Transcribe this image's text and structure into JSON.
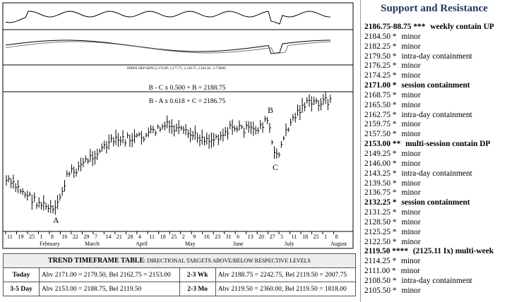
{
  "chart": {
    "indicator_label": "EMINI S&P SEP6 (2,174.00, 2,177.75, 2,158.75, 2,164.50, -3.75000)",
    "annotations": [
      "B - C  x  0.500 + B = 2188.75",
      "B - A  x  0.618 + C = 2186.75"
    ],
    "points": [
      "A",
      "B",
      "C"
    ],
    "days": [
      "11",
      "19",
      "25",
      "1",
      "8",
      "16",
      "22",
      "29",
      "7",
      "14",
      "21",
      "28",
      "4",
      "11",
      "18",
      "25",
      "2",
      "9",
      "16",
      "23",
      "31",
      "6",
      "13",
      "20",
      "27",
      "5",
      "11",
      "18",
      "25",
      "1",
      "8"
    ],
    "months": [
      "February",
      "March",
      "April",
      "May",
      "June",
      "July",
      "August"
    ]
  },
  "levels_panel": {
    "title": "Support and Resistance",
    "levels": [
      {
        "level": "2186.75-88.75",
        "marker": "***",
        "note": "weekly contain UP",
        "bold": true
      },
      {
        "level": "2184.50",
        "marker": "*",
        "note": "minor",
        "bold": false
      },
      {
        "level": "2182.25",
        "marker": "*",
        "note": "minor",
        "bold": false
      },
      {
        "level": "2179.50",
        "marker": "*",
        "note": "intra-day containment",
        "bold": false
      },
      {
        "level": "2176.25",
        "marker": "*",
        "note": "minor",
        "bold": false
      },
      {
        "level": "2174.25",
        "marker": "*",
        "note": "minor",
        "bold": false
      },
      {
        "level": "2171.00",
        "marker": "*",
        "note": "session containment",
        "bold": true
      },
      {
        "level": "2168.75",
        "marker": "*",
        "note": "minor",
        "bold": false
      },
      {
        "level": "2165.50",
        "marker": "*",
        "note": "minor",
        "bold": false
      },
      {
        "level": "2162.75",
        "marker": "*",
        "note": "intra-day containment",
        "bold": false
      },
      {
        "level": "2159.75",
        "marker": "*",
        "note": "minor",
        "bold": false
      },
      {
        "level": "2157.50",
        "marker": "*",
        "note": "minor",
        "bold": false
      },
      {
        "level": "2153.00",
        "marker": "**",
        "note": "multi-session contain DP",
        "bold": true
      },
      {
        "level": "2149.25",
        "marker": "*",
        "note": "minor",
        "bold": false
      },
      {
        "level": "2146.00",
        "marker": "*",
        "note": "minor",
        "bold": false
      },
      {
        "level": "2143.25",
        "marker": "*",
        "note": "intra-day containment",
        "bold": false
      },
      {
        "level": "2139.50",
        "marker": "*",
        "note": "minor",
        "bold": false
      },
      {
        "level": "2136.75",
        "marker": "*",
        "note": "minor",
        "bold": false
      },
      {
        "level": "2132.25",
        "marker": "*",
        "note": "session containment",
        "bold": true
      },
      {
        "level": "2131.25",
        "marker": "*",
        "note": "minor",
        "bold": false
      },
      {
        "level": "2128.50",
        "marker": "*",
        "note": "minor",
        "bold": false
      },
      {
        "level": "2125.25",
        "marker": "*",
        "note": "minor",
        "bold": false
      },
      {
        "level": "2122.50",
        "marker": "*",
        "note": "minor",
        "bold": false
      },
      {
        "level": "2119.50",
        "marker": "****",
        "note": "(2125.11 Ix) multi-week",
        "bold": true
      },
      {
        "level": "2114.25",
        "marker": "*",
        "note": "minor",
        "bold": false
      },
      {
        "level": "2111.00",
        "marker": "*",
        "note": "minor",
        "bold": false
      },
      {
        "level": "2108.50",
        "marker": "*",
        "note": "intra-day containment",
        "bold": false
      },
      {
        "level": "2105.50",
        "marker": "*",
        "note": "minor",
        "bold": false
      }
    ]
  },
  "trend_table": {
    "title": "TREND TIMEFRAME TABLE",
    "subtitle": ": DIRECTIONAL TARGETS ABOVE/BELOW RESPECTIVE LEVELS",
    "rows": [
      [
        "Today",
        "Abv 2171.00 = 2179.50, Bel 2162.75 = 2153.00",
        "2-3 Wk",
        "Abv 2188.75 = 2242.75, Bel 2119.50 = 2007.75"
      ],
      [
        "3-5 Day",
        "Abv 2153.00 = 2188.75, Bel 2119.50",
        "2-3 Mo",
        "Abv 2119.50 = 2360.00, Bel 2119.50 = 1818.00"
      ]
    ]
  }
}
